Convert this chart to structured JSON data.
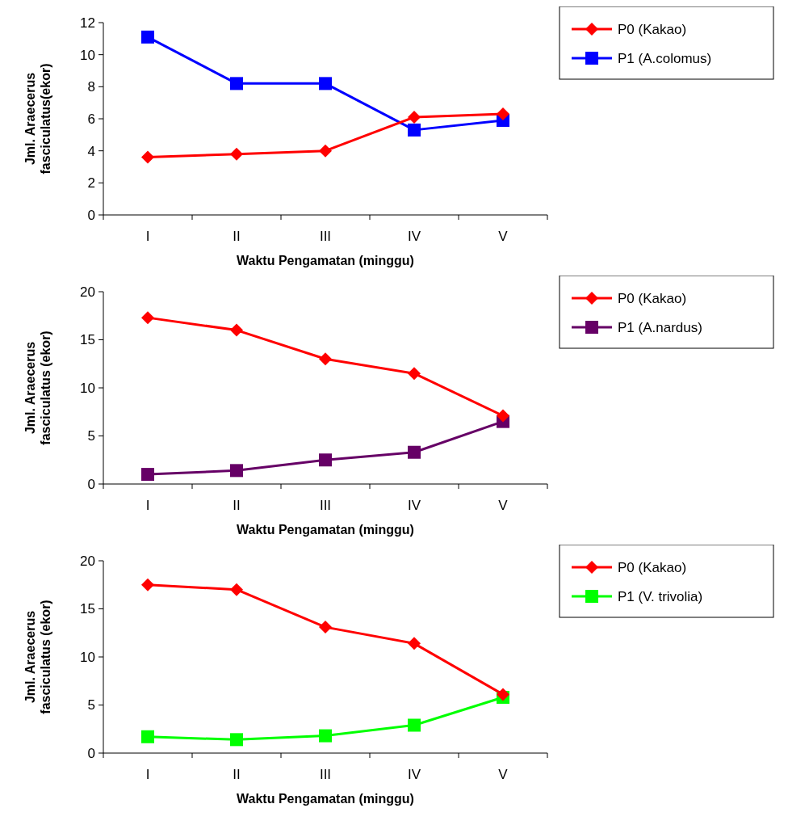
{
  "chart_data": [
    {
      "type": "line",
      "categories": [
        "I",
        "II",
        "III",
        "IV",
        "V"
      ],
      "xlabel": "Waktu Pengamatan (minggu)",
      "ylabel": "Jml. Araecerus fasciculatus(ekor)",
      "ylim": [
        0,
        12
      ],
      "yticks": [
        0,
        2,
        4,
        6,
        8,
        10,
        12
      ],
      "grid": false,
      "legend": "top right",
      "line_style": "solid",
      "series": [
        {
          "name": "P0 (Kakao)",
          "color": "#ff0000",
          "marker": "diamond",
          "values": [
            3.6,
            3.8,
            4.0,
            6.1,
            6.3
          ]
        },
        {
          "name": "P1 (A.colomus)",
          "color": "#0000ff",
          "marker": "square",
          "values": [
            11.1,
            8.2,
            8.2,
            5.3,
            5.9
          ]
        }
      ]
    },
    {
      "type": "line",
      "categories": [
        "I",
        "II",
        "III",
        "IV",
        "V"
      ],
      "xlabel": "Waktu Pengamatan (minggu)",
      "ylabel": "Jml. Araecerus fasciculatus (ekor)",
      "ylim": [
        0,
        20
      ],
      "yticks": [
        0,
        5,
        10,
        15,
        20
      ],
      "grid": false,
      "legend": "top right",
      "line_style": "solid",
      "series": [
        {
          "name": "P0 (Kakao)",
          "color": "#ff0000",
          "marker": "diamond",
          "values": [
            17.3,
            16.0,
            13.0,
            11.5,
            7.1
          ]
        },
        {
          "name": "P1 (A.nardus)",
          "color": "#660066",
          "marker": "square",
          "values": [
            1.0,
            1.4,
            2.5,
            3.3,
            6.5
          ]
        }
      ]
    },
    {
      "type": "line",
      "categories": [
        "I",
        "II",
        "III",
        "IV",
        "V"
      ],
      "xlabel": "Waktu Pengamatan (minggu)",
      "ylabel": "Jml. Araecerus fasciculatus (ekor)",
      "ylim": [
        0,
        20
      ],
      "yticks": [
        0,
        5,
        10,
        15,
        20
      ],
      "grid": false,
      "legend": "top right",
      "line_style": "solid",
      "series": [
        {
          "name": "P0 (Kakao)",
          "color": "#ff0000",
          "marker": "diamond",
          "values": [
            17.5,
            17.0,
            13.1,
            11.4,
            6.1
          ]
        },
        {
          "name": "P1 (V. trivolia)",
          "color": "#00ff00",
          "marker": "square",
          "values": [
            1.7,
            1.4,
            1.8,
            2.9,
            5.8
          ]
        }
      ]
    }
  ]
}
